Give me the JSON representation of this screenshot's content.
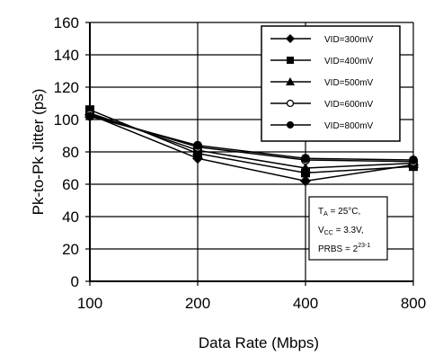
{
  "chart_data": {
    "type": "line",
    "categories": [
      "100",
      "200",
      "400",
      "800"
    ],
    "ylabel": "Pk-to-Pk Jitter (ps)",
    "xlabel": "Data Rate (Mbps)",
    "ylim": [
      0,
      160
    ],
    "yticks": [
      0,
      20,
      40,
      60,
      80,
      100,
      120,
      140,
      160
    ],
    "grid": "horizontal and vertical",
    "legend_position": "top-right",
    "series": [
      {
        "name": "VID=300mV",
        "marker": "diamond",
        "values": [
          103,
          76,
          62,
          72
        ]
      },
      {
        "name": "VID=400mV",
        "marker": "square",
        "values": [
          106,
          79,
          67,
          71
        ]
      },
      {
        "name": "VID=500mV",
        "marker": "triangle",
        "values": [
          104,
          81,
          70,
          73
        ]
      },
      {
        "name": "VID=600mV",
        "marker": "open-circle",
        "values": [
          103,
          83,
          75,
          74
        ]
      },
      {
        "name": "VID=800mV",
        "marker": "circle",
        "values": [
          102,
          84,
          76,
          75
        ]
      }
    ],
    "annotation": {
      "line1_main": "T",
      "line1_sub": "A",
      "line1_rest": " = 25°C,",
      "line2_main": "V",
      "line2_sub": "CC",
      "line2_rest": " = 3.3V,",
      "line3_main": "PRBS = 2",
      "line3_sup": "23-1"
    }
  }
}
